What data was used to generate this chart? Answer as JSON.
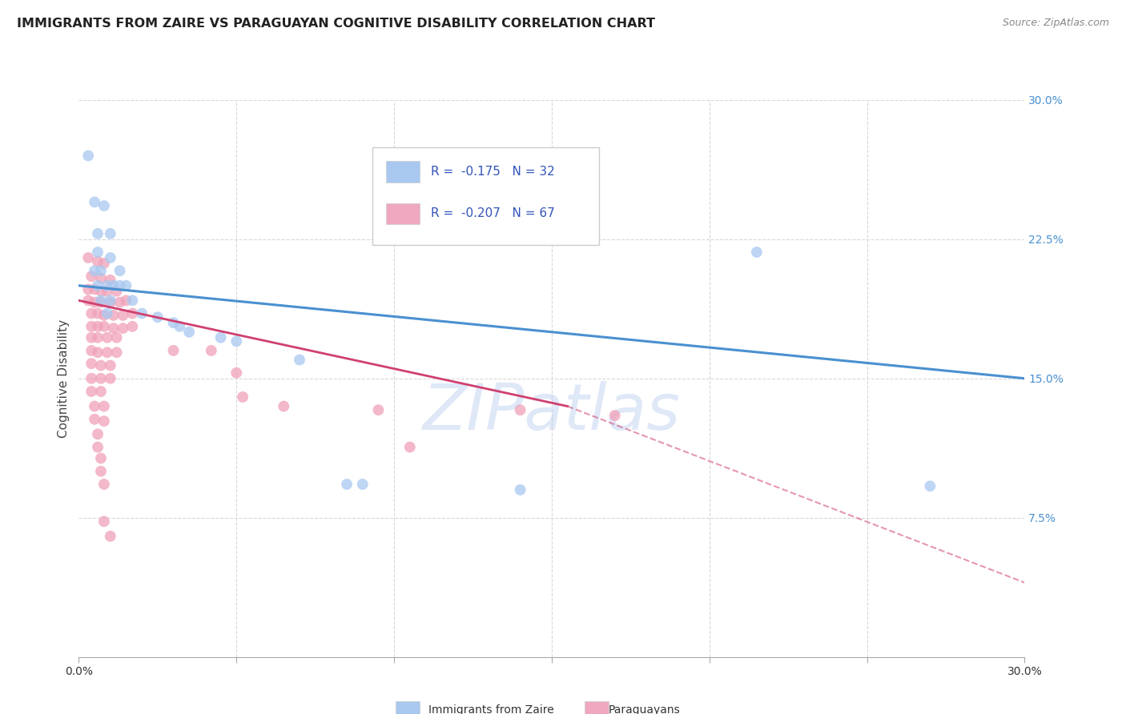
{
  "title": "IMMIGRANTS FROM ZAIRE VS PARAGUAYAN COGNITIVE DISABILITY CORRELATION CHART",
  "source": "Source: ZipAtlas.com",
  "ylabel": "Cognitive Disability",
  "xlim": [
    0.0,
    0.3
  ],
  "ylim": [
    0.0,
    0.3
  ],
  "blue_scatter": [
    [
      0.003,
      0.27
    ],
    [
      0.005,
      0.245
    ],
    [
      0.008,
      0.243
    ],
    [
      0.006,
      0.228
    ],
    [
      0.01,
      0.228
    ],
    [
      0.006,
      0.218
    ],
    [
      0.01,
      0.215
    ],
    [
      0.005,
      0.208
    ],
    [
      0.007,
      0.208
    ],
    [
      0.013,
      0.208
    ],
    [
      0.006,
      0.2
    ],
    [
      0.009,
      0.2
    ],
    [
      0.011,
      0.2
    ],
    [
      0.013,
      0.2
    ],
    [
      0.015,
      0.2
    ],
    [
      0.007,
      0.192
    ],
    [
      0.01,
      0.192
    ],
    [
      0.017,
      0.192
    ],
    [
      0.009,
      0.185
    ],
    [
      0.02,
      0.185
    ],
    [
      0.025,
      0.183
    ],
    [
      0.03,
      0.18
    ],
    [
      0.032,
      0.178
    ],
    [
      0.035,
      0.175
    ],
    [
      0.045,
      0.172
    ],
    [
      0.05,
      0.17
    ],
    [
      0.07,
      0.16
    ],
    [
      0.085,
      0.093
    ],
    [
      0.09,
      0.093
    ],
    [
      0.14,
      0.09
    ],
    [
      0.215,
      0.218
    ],
    [
      0.27,
      0.092
    ]
  ],
  "pink_scatter": [
    [
      0.003,
      0.215
    ],
    [
      0.006,
      0.213
    ],
    [
      0.008,
      0.212
    ],
    [
      0.004,
      0.205
    ],
    [
      0.007,
      0.204
    ],
    [
      0.01,
      0.203
    ],
    [
      0.003,
      0.198
    ],
    [
      0.005,
      0.198
    ],
    [
      0.007,
      0.197
    ],
    [
      0.009,
      0.197
    ],
    [
      0.012,
      0.197
    ],
    [
      0.003,
      0.192
    ],
    [
      0.005,
      0.191
    ],
    [
      0.007,
      0.191
    ],
    [
      0.01,
      0.191
    ],
    [
      0.013,
      0.191
    ],
    [
      0.015,
      0.192
    ],
    [
      0.004,
      0.185
    ],
    [
      0.006,
      0.185
    ],
    [
      0.008,
      0.184
    ],
    [
      0.011,
      0.184
    ],
    [
      0.014,
      0.184
    ],
    [
      0.017,
      0.185
    ],
    [
      0.004,
      0.178
    ],
    [
      0.006,
      0.178
    ],
    [
      0.008,
      0.178
    ],
    [
      0.011,
      0.177
    ],
    [
      0.014,
      0.177
    ],
    [
      0.017,
      0.178
    ],
    [
      0.004,
      0.172
    ],
    [
      0.006,
      0.172
    ],
    [
      0.009,
      0.172
    ],
    [
      0.012,
      0.172
    ],
    [
      0.004,
      0.165
    ],
    [
      0.006,
      0.164
    ],
    [
      0.009,
      0.164
    ],
    [
      0.012,
      0.164
    ],
    [
      0.004,
      0.158
    ],
    [
      0.007,
      0.157
    ],
    [
      0.01,
      0.157
    ],
    [
      0.004,
      0.15
    ],
    [
      0.007,
      0.15
    ],
    [
      0.01,
      0.15
    ],
    [
      0.004,
      0.143
    ],
    [
      0.007,
      0.143
    ],
    [
      0.005,
      0.135
    ],
    [
      0.008,
      0.135
    ],
    [
      0.005,
      0.128
    ],
    [
      0.008,
      0.127
    ],
    [
      0.006,
      0.12
    ],
    [
      0.006,
      0.113
    ],
    [
      0.007,
      0.107
    ],
    [
      0.007,
      0.1
    ],
    [
      0.008,
      0.093
    ],
    [
      0.008,
      0.073
    ],
    [
      0.01,
      0.065
    ],
    [
      0.03,
      0.165
    ],
    [
      0.042,
      0.165
    ],
    [
      0.05,
      0.153
    ],
    [
      0.052,
      0.14
    ],
    [
      0.065,
      0.135
    ],
    [
      0.095,
      0.133
    ],
    [
      0.105,
      0.113
    ],
    [
      0.14,
      0.133
    ],
    [
      0.17,
      0.13
    ]
  ],
  "blue_line": {
    "x": [
      0.0,
      0.3
    ],
    "y": [
      0.2,
      0.15
    ]
  },
  "pink_line_solid": {
    "x": [
      0.0,
      0.155
    ],
    "y": [
      0.192,
      0.135
    ]
  },
  "pink_line_dashed": {
    "x": [
      0.155,
      0.3
    ],
    "y": [
      0.135,
      0.04
    ]
  },
  "blue_scatter_color": "#a8c8f0",
  "pink_scatter_color": "#f0a0b8",
  "blue_line_color": "#4a90d0",
  "pink_line_color": "#d04070",
  "legend_blue_color": "#a8c8f0",
  "legend_pink_color": "#f0a8c0",
  "legend_text_color": "#3355bb",
  "watermark": "ZIPatlas",
  "background_color": "#ffffff",
  "grid_color": "#d8d8d8"
}
